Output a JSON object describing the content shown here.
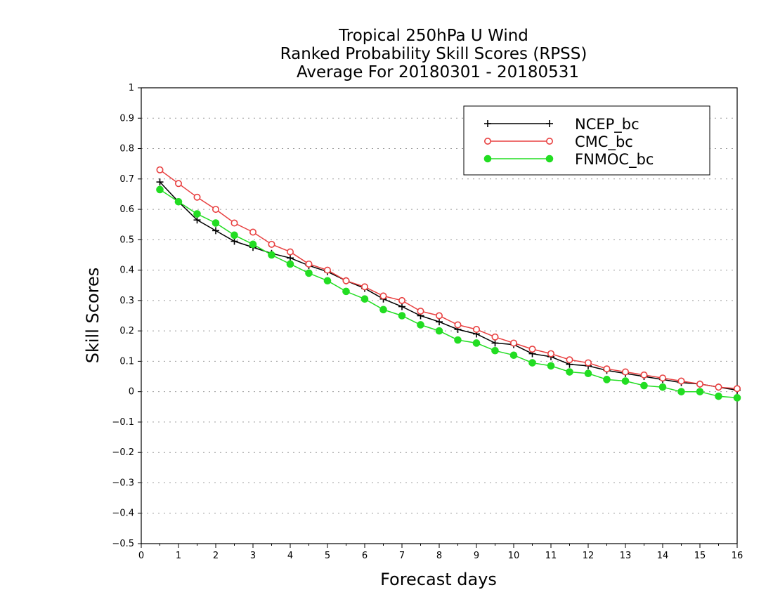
{
  "chart_data": {
    "type": "line",
    "title_lines": [
      "Tropical 250hPa U Wind",
      "Ranked Probability Skill Scores (RPSS)",
      "Average For 20180301 - 20180531"
    ],
    "xlabel": "Forecast days",
    "ylabel": "Skill Scores",
    "xlim": [
      0,
      16
    ],
    "ylim": [
      -0.5,
      1
    ],
    "x_ticks": [
      0,
      1,
      2,
      3,
      4,
      5,
      6,
      7,
      8,
      9,
      10,
      11,
      12,
      13,
      14,
      15,
      16
    ],
    "x_tick_labels": [
      "0",
      "1",
      "2",
      "3",
      "4",
      "5",
      "6",
      "7",
      "8",
      "9",
      "10",
      "11",
      "12",
      "13",
      "14",
      "15",
      "16"
    ],
    "y_ticks": [
      -0.5,
      -0.4,
      -0.3,
      -0.2,
      -0.1,
      0,
      0.1,
      0.2,
      0.3,
      0.4,
      0.5,
      0.6,
      0.7,
      0.8,
      0.9,
      1
    ],
    "y_tick_labels": [
      "−0.5",
      "−0.4",
      "−0.3",
      "−0.2",
      "−0.1",
      "0",
      "0.1",
      "0.2",
      "0.3",
      "0.4",
      "0.5",
      "0.6",
      "0.7",
      "0.8",
      "0.9",
      "1"
    ],
    "grid": "horizontal dotted",
    "legend_position": "top-right",
    "x": [
      0.5,
      1,
      1.5,
      2,
      2.5,
      3,
      3.5,
      4,
      4.5,
      5,
      5.5,
      6,
      6.5,
      7,
      7.5,
      8,
      8.5,
      9,
      9.5,
      10,
      10.5,
      11,
      11.5,
      12,
      12.5,
      13,
      13.5,
      14,
      14.5,
      15,
      15.5,
      16
    ],
    "series": [
      {
        "name": "NCEP_bc",
        "color": "#000000",
        "marker": "plus",
        "values": [
          0.69,
          0.625,
          0.565,
          0.53,
          0.495,
          0.475,
          0.455,
          0.44,
          0.415,
          0.395,
          0.365,
          0.34,
          0.305,
          0.28,
          0.25,
          0.23,
          0.205,
          0.19,
          0.16,
          0.155,
          0.125,
          0.115,
          0.09,
          0.085,
          0.07,
          0.06,
          0.05,
          0.04,
          0.03,
          0.025,
          0.015,
          0.005
        ]
      },
      {
        "name": "CMC_bc",
        "color": "#e84040",
        "marker": "open-circle",
        "values": [
          0.73,
          0.685,
          0.64,
          0.6,
          0.555,
          0.525,
          0.485,
          0.46,
          0.42,
          0.4,
          0.365,
          0.345,
          0.315,
          0.3,
          0.265,
          0.25,
          0.22,
          0.205,
          0.18,
          0.16,
          0.14,
          0.125,
          0.105,
          0.095,
          0.075,
          0.065,
          0.055,
          0.045,
          0.035,
          0.025,
          0.015,
          0.01
        ]
      },
      {
        "name": "FNMOC_bc",
        "color": "#22dd22",
        "marker": "filled-circle",
        "values": [
          0.665,
          0.625,
          0.585,
          0.555,
          0.515,
          0.485,
          0.45,
          0.42,
          0.39,
          0.365,
          0.33,
          0.305,
          0.27,
          0.25,
          0.22,
          0.2,
          0.17,
          0.16,
          0.135,
          0.12,
          0.095,
          0.085,
          0.065,
          0.06,
          0.04,
          0.035,
          0.02,
          0.015,
          0.0,
          0.0,
          -0.015,
          -0.02
        ]
      }
    ]
  }
}
